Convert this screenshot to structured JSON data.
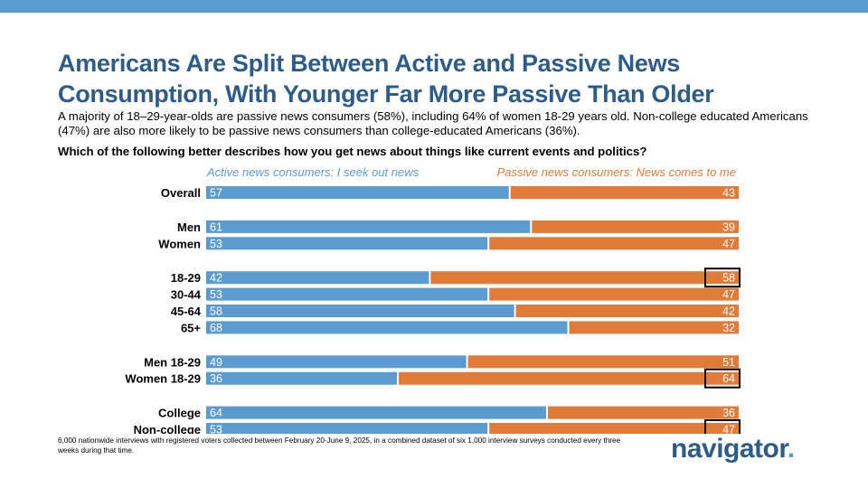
{
  "header": {
    "title_line1": "Americans Are Split Between Active and Passive News",
    "title_line2": "Consumption, With Younger Far More Passive Than Older",
    "subtitle": "A majority of 18–29-year-olds are passive news consumers (58%), including 64% of women 18-29 years old. Non-college educated Americans (47%) are also more likely to be passive news consumers than college-educated Americans (36%).",
    "question": "Which of the following better describes how you get news about things like current events and politics?"
  },
  "chart_data": {
    "type": "bar",
    "orientation": "horizontal-stacked-100",
    "categories": [
      "Overall",
      "Men",
      "Women",
      "18-29",
      "30-44",
      "45-64",
      "65+",
      "Men 18-29",
      "Women 18-29",
      "College",
      "Non-college"
    ],
    "groups": [
      [
        "Overall"
      ],
      [
        "Men",
        "Women"
      ],
      [
        "18-29",
        "30-44",
        "45-64",
        "65+"
      ],
      [
        "Men 18-29",
        "Women 18-29"
      ],
      [
        "College",
        "Non-college"
      ]
    ],
    "series": [
      {
        "name": "Active news consumers: I seek out news",
        "color": "#5b9bd0",
        "values": [
          57,
          61,
          53,
          42,
          53,
          58,
          68,
          49,
          36,
          64,
          53
        ]
      },
      {
        "name": "Passive news consumers: News comes to me",
        "color": "#e07b39",
        "values": [
          43,
          39,
          47,
          58,
          47,
          42,
          32,
          51,
          64,
          36,
          47
        ]
      }
    ],
    "highlighted": [
      "18-29",
      "Women 18-29",
      "Non-college"
    ],
    "xlim": [
      0,
      100
    ]
  },
  "footnote": "6,000 nationwide interviews with registered voters collected between February 20-June 9, 2025, in a combined dataset of six 1,000 interview surveys conducted every three weeks during that time.",
  "logo": {
    "text": "navigator",
    "dot": "."
  },
  "colors": {
    "accent": "#5b9bd0",
    "title": "#2e5c8a",
    "passive": "#e07b39"
  }
}
